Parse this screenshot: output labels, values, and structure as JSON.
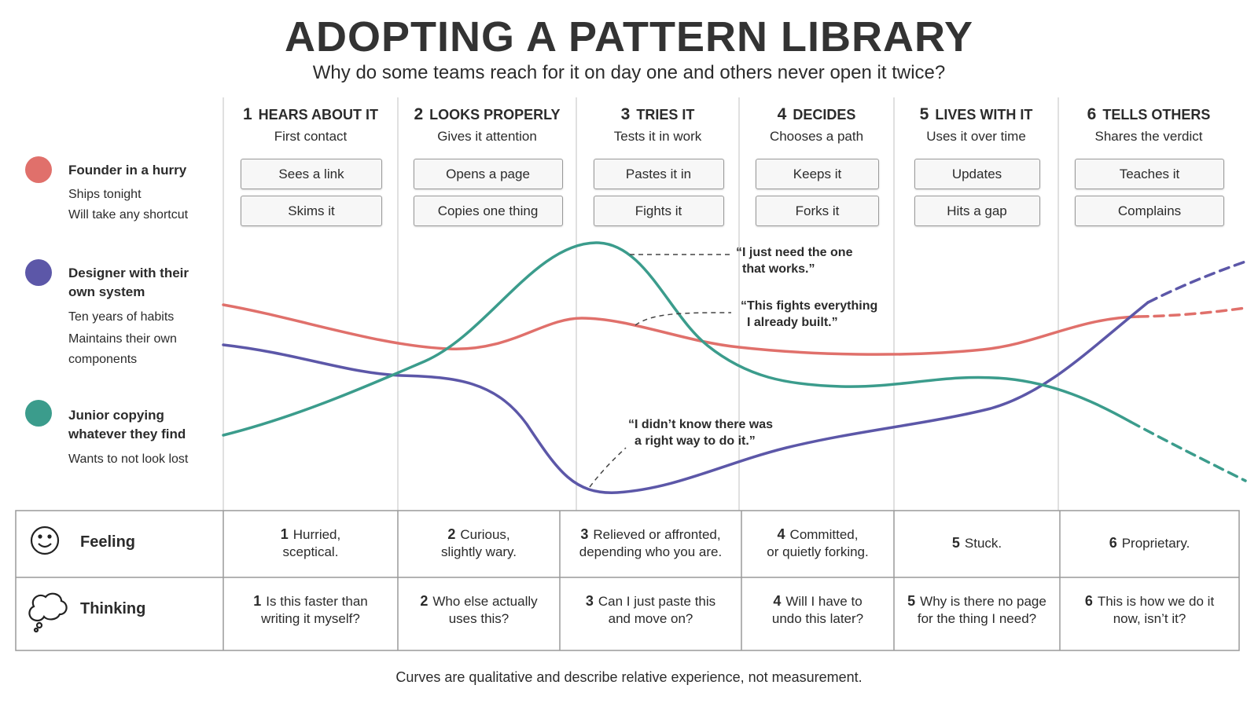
{
  "header": {
    "title": "ADOPTING A PATTERN LIBRARY",
    "subtitle": "Why do some teams reach for it on day one and others never open it twice?"
  },
  "personas": [
    {
      "name": "Founder in a hurry",
      "lines": [
        "Ships tonight",
        "Will take any shortcut"
      ]
    },
    {
      "name": "Designer with their own system",
      "lines": [
        "Ten years of habits",
        "Maintains their own components"
      ]
    },
    {
      "name": "Junior copying whatever they find",
      "lines": [
        "Wants to not look lost"
      ]
    }
  ],
  "stages": [
    {
      "number": 1,
      "title": "HEARS ABOUT IT",
      "subtitle": "First contact",
      "actions": [
        "Sees a link",
        "Skims it"
      ]
    },
    {
      "number": 2,
      "title": "LOOKS PROPERLY",
      "subtitle": "Gives it attention",
      "actions": [
        "Opens a page",
        "Copies one thing"
      ]
    },
    {
      "number": 3,
      "title": "TRIES IT",
      "subtitle": "Tests it in work",
      "actions": [
        "Pastes it in",
        "Fights it"
      ]
    },
    {
      "number": 4,
      "title": "DECIDES",
      "subtitle": "Chooses a path",
      "actions": [
        "Keeps it",
        "Forks it"
      ]
    },
    {
      "number": 5,
      "title": "LIVES WITH IT",
      "subtitle": "Uses it over time",
      "actions": [
        "Updates",
        "Hits a gap"
      ]
    },
    {
      "number": 6,
      "title": "TELLS OTHERS",
      "subtitle": "Shares the verdict",
      "actions": [
        "Teaches it",
        "Complains"
      ]
    }
  ],
  "quotes": [
    {
      "lines": [
        "“I just need the one",
        "that works.”"
      ]
    },
    {
      "lines": [
        "“This fights everything",
        "I already built.”"
      ]
    },
    {
      "lines": [
        "“I didn’t know there was",
        "a right way to do it.”"
      ]
    }
  ],
  "rows": [
    {
      "label": "Feeling",
      "cells": [
        {
          "number": 1,
          "lines": [
            "Hurried,",
            "sceptical."
          ]
        },
        {
          "number": 2,
          "lines": [
            "Curious,",
            "slightly wary."
          ]
        },
        {
          "number": 3,
          "lines": [
            "Relieved or affronted,",
            "depending who you are."
          ]
        },
        {
          "number": 4,
          "lines": [
            "Committed,",
            "or quietly forking."
          ]
        },
        {
          "number": 5,
          "lines": [
            "Stuck."
          ]
        },
        {
          "number": 6,
          "lines": [
            "Proprietary."
          ]
        }
      ]
    },
    {
      "label": "Thinking",
      "cells": [
        {
          "number": 1,
          "lines": [
            "Is this faster than",
            "writing it myself?"
          ]
        },
        {
          "number": 2,
          "lines": [
            "Who else actually",
            "uses this?"
          ]
        },
        {
          "number": 3,
          "lines": [
            "Can I just paste this",
            "and move on?"
          ]
        },
        {
          "number": 4,
          "lines": [
            "Will I have to",
            "undo this later?"
          ]
        },
        {
          "number": 5,
          "lines": [
            "Why is there no page",
            "for the thing I need?"
          ]
        },
        {
          "number": 6,
          "lines": [
            "This is how we do it",
            "now, isn’t it?"
          ]
        }
      ]
    }
  ],
  "footer": "Curves are qualitative and describe relative experience, not measurement."
}
